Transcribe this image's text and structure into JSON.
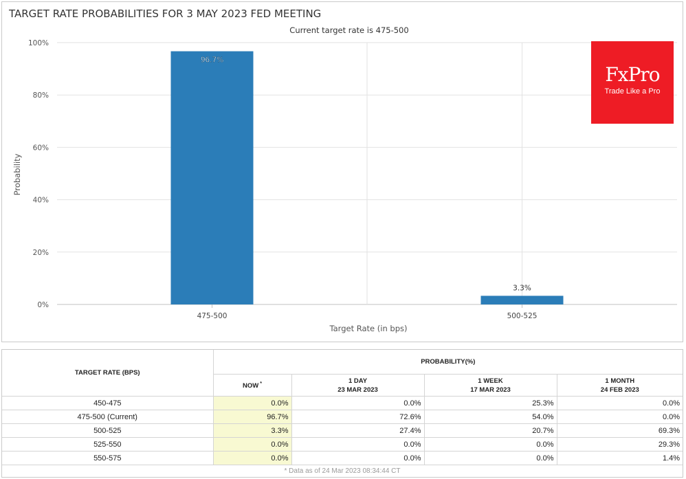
{
  "chart_data": {
    "type": "bar",
    "title": "TARGET RATE PROBABILITIES FOR 3 MAY 2023 FED MEETING",
    "subtitle": "Current target rate is 475-500",
    "xlabel": "Target Rate (in bps)",
    "ylabel": "Probability",
    "categories": [
      "475-500",
      "500-525"
    ],
    "values": [
      96.7,
      3.3
    ],
    "data_labels": [
      "96.7%",
      "3.3%"
    ],
    "ylim": [
      0,
      100
    ],
    "yticks": [
      0,
      20,
      40,
      60,
      80,
      100
    ],
    "ytick_labels": [
      "0%",
      "20%",
      "40%",
      "60%",
      "80%",
      "100%"
    ],
    "grid": true,
    "bar_color": "#2b7db8"
  },
  "logo": {
    "name": "FxPro",
    "tagline": "Trade Like a Pro",
    "color": "#ee1c25"
  },
  "table": {
    "target_rate_header": "TARGET RATE (BPS)",
    "probability_header": "PROBABILITY(%)",
    "columns": [
      {
        "line1": "NOW",
        "line2": "",
        "marker": "*"
      },
      {
        "line1": "1 DAY",
        "line2": "23 MAR 2023",
        "marker": ""
      },
      {
        "line1": "1 WEEK",
        "line2": "17 MAR 2023",
        "marker": ""
      },
      {
        "line1": "1 MONTH",
        "line2": "24 FEB 2023",
        "marker": ""
      }
    ],
    "rows": [
      {
        "rate": "450-475",
        "values": [
          "0.0%",
          "0.0%",
          "25.3%",
          "0.0%"
        ]
      },
      {
        "rate": "475-500 (Current)",
        "values": [
          "96.7%",
          "72.6%",
          "54.0%",
          "0.0%"
        ]
      },
      {
        "rate": "500-525",
        "values": [
          "3.3%",
          "27.4%",
          "20.7%",
          "69.3%"
        ]
      },
      {
        "rate": "525-550",
        "values": [
          "0.0%",
          "0.0%",
          "0.0%",
          "29.3%"
        ]
      },
      {
        "rate": "550-575",
        "values": [
          "0.0%",
          "0.0%",
          "0.0%",
          "1.4%"
        ]
      }
    ],
    "footnote": "* Data as of 24 Mar 2023 08:34:44 CT",
    "now_highlight_color": "#f8f9d2"
  }
}
